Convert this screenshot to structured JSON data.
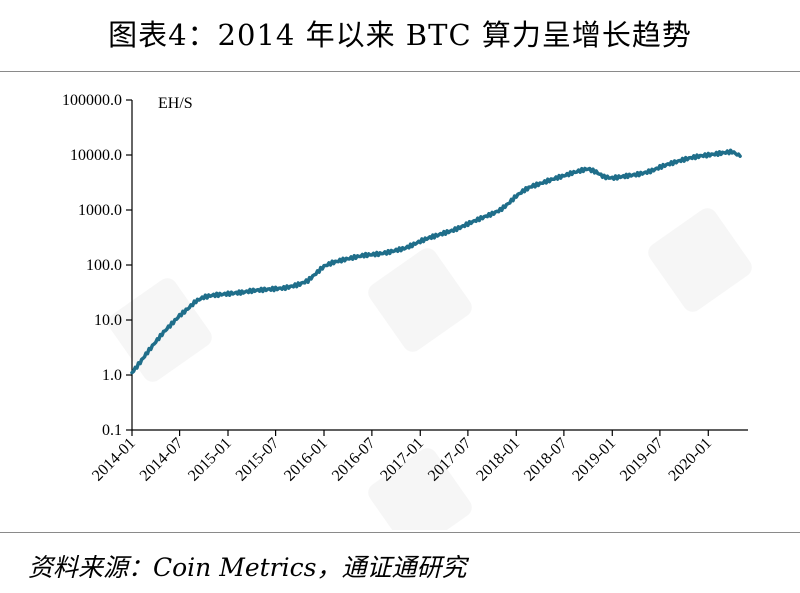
{
  "page": {
    "title": "图表4：2014 年以来 BTC 算力呈增长趋势",
    "source": "资料来源：Coin Metrics，通证通研究"
  },
  "chart_data": {
    "type": "line",
    "scale": "log",
    "unit_label": "EH/S",
    "ylim": [
      0.1,
      100000
    ],
    "y_ticks": [
      "100000.0",
      "10000.0",
      "1000.0",
      "100.0",
      "10.0",
      "1.0",
      "0.1"
    ],
    "y_tick_values": [
      100000,
      10000,
      1000,
      100,
      10,
      1,
      0.1
    ],
    "x_ticks": [
      "2014-01",
      "2014-07",
      "2015-01",
      "2015-07",
      "2016-01",
      "2016-07",
      "2017-01",
      "2017-07",
      "2018-01",
      "2018-07",
      "2019-01",
      "2019-07",
      "2020-01"
    ],
    "grid": false,
    "line_color": "#1f6e8a",
    "series": [
      {
        "x": [
          "2014-01",
          "2014-02",
          "2014-03",
          "2014-04",
          "2014-05",
          "2014-06",
          "2014-07",
          "2014-08",
          "2014-09",
          "2014-10",
          "2014-11",
          "2014-12",
          "2015-01",
          "2015-02",
          "2015-03",
          "2015-04",
          "2015-05",
          "2015-06",
          "2015-07",
          "2015-08",
          "2015-09",
          "2015-10",
          "2015-11",
          "2015-12",
          "2016-01",
          "2016-02",
          "2016-03",
          "2016-04",
          "2016-05",
          "2016-06",
          "2016-07",
          "2016-08",
          "2016-09",
          "2016-10",
          "2016-11",
          "2016-12",
          "2017-01",
          "2017-02",
          "2017-03",
          "2017-04",
          "2017-05",
          "2017-06",
          "2017-07",
          "2017-08",
          "2017-09",
          "2017-10",
          "2017-11",
          "2017-12",
          "2018-01",
          "2018-02",
          "2018-03",
          "2018-04",
          "2018-05",
          "2018-06",
          "2018-07",
          "2018-08",
          "2018-09",
          "2018-10",
          "2018-11",
          "2018-12",
          "2019-01",
          "2019-02",
          "2019-03",
          "2019-04",
          "2019-05",
          "2019-06",
          "2019-07",
          "2019-08",
          "2019-09",
          "2019-10",
          "2019-11",
          "2019-12",
          "2020-01",
          "2020-02",
          "2020-03",
          "2020-04",
          "2020-05"
        ],
        "values": [
          1.1,
          1.7,
          2.6,
          4.0,
          6.0,
          8.5,
          12.0,
          16.0,
          22.0,
          26.0,
          28.0,
          29.0,
          30.0,
          31.0,
          32.0,
          34.0,
          35.0,
          36.0,
          37.0,
          38.0,
          41.0,
          45.0,
          52.0,
          70.0,
          95.0,
          110.0,
          120.0,
          130.0,
          140.0,
          150.0,
          155.0,
          160.0,
          170.0,
          185.0,
          200.0,
          230.0,
          270.0,
          310.0,
          340.0,
          380.0,
          420.0,
          480.0,
          560.0,
          650.0,
          750.0,
          850.0,
          1000.0,
          1300.0,
          1800.0,
          2300.0,
          2700.0,
          3000.0,
          3400.0,
          3800.0,
          4200.0,
          4700.0,
          5200.0,
          5600.0,
          4900.0,
          4000.0,
          3800.0,
          4000.0,
          4200.0,
          4400.0,
          4700.0,
          5200.0,
          6000.0,
          6800.0,
          7500.0,
          8300.0,
          9000.0,
          9600.0,
          10000.0,
          10500.0,
          11000.0,
          11500.0,
          9500.0
        ]
      }
    ]
  }
}
